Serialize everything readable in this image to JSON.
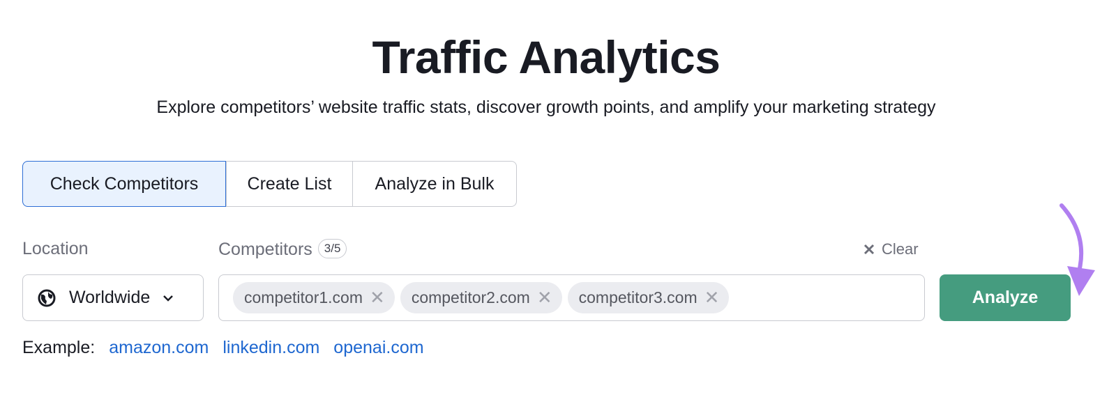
{
  "header": {
    "title": "Traffic Analytics",
    "subtitle": "Explore competitors’ website traffic stats, discover growth points, and amplify your marketing strategy"
  },
  "tabs": [
    {
      "label": "Check Competitors",
      "active": true
    },
    {
      "label": "Create List",
      "active": false
    },
    {
      "label": "Analyze in Bulk",
      "active": false
    }
  ],
  "location": {
    "label": "Location",
    "value": "Worldwide",
    "icon": "globe-icon"
  },
  "competitors": {
    "label": "Competitors",
    "count": "3/5",
    "chips": [
      "competitor1.com",
      "competitor2.com",
      "competitor3.com"
    ],
    "clear_label": "Clear"
  },
  "analyze_label": "Analyze",
  "example": {
    "label": "Example:",
    "links": [
      "amazon.com",
      "linkedin.com",
      "openai.com"
    ]
  },
  "colors": {
    "accent": "#459c7f",
    "active_tab_bg": "#e9f2fe",
    "active_tab_border": "#2d6ed6",
    "link": "#1e67d0",
    "arrow": "#b07ff0"
  }
}
